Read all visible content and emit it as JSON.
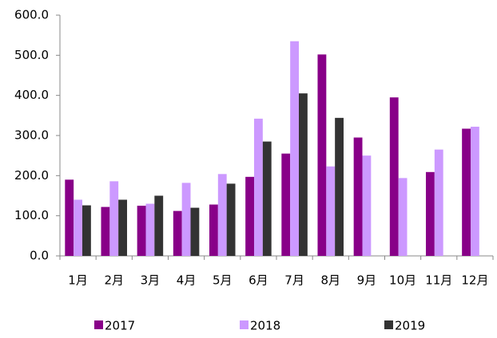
{
  "chart_data": {
    "type": "bar",
    "categories": [
      "1月",
      "2月",
      "3月",
      "4月",
      "5月",
      "6月",
      "7月",
      "8月",
      "9月",
      "10月",
      "11月",
      "12月"
    ],
    "series": [
      {
        "name": "2017",
        "color": "#880088",
        "values": [
          190,
          122,
          125,
          112,
          128,
          197,
          255,
          502,
          295,
          395,
          209,
          317
        ]
      },
      {
        "name": "2018",
        "color": "#cc99ff",
        "values": [
          140,
          186,
          130,
          182,
          204,
          342,
          535,
          223,
          250,
          194,
          265,
          322
        ]
      },
      {
        "name": "2019",
        "color": "#333333",
        "values": [
          126,
          140,
          150,
          120,
          180,
          285,
          405,
          344,
          null,
          null,
          null,
          null
        ]
      }
    ],
    "ylim": [
      0,
      600
    ],
    "yticks": [
      {
        "value": 0,
        "label": "0.0"
      },
      {
        "value": 100,
        "label": "100.0"
      },
      {
        "value": 200,
        "label": "200.0"
      },
      {
        "value": 300,
        "label": "300.0"
      },
      {
        "value": 400,
        "label": "400.0"
      },
      {
        "value": 500,
        "label": "500.0"
      },
      {
        "value": 600,
        "label": "600.0"
      }
    ],
    "legend": "bottom"
  }
}
